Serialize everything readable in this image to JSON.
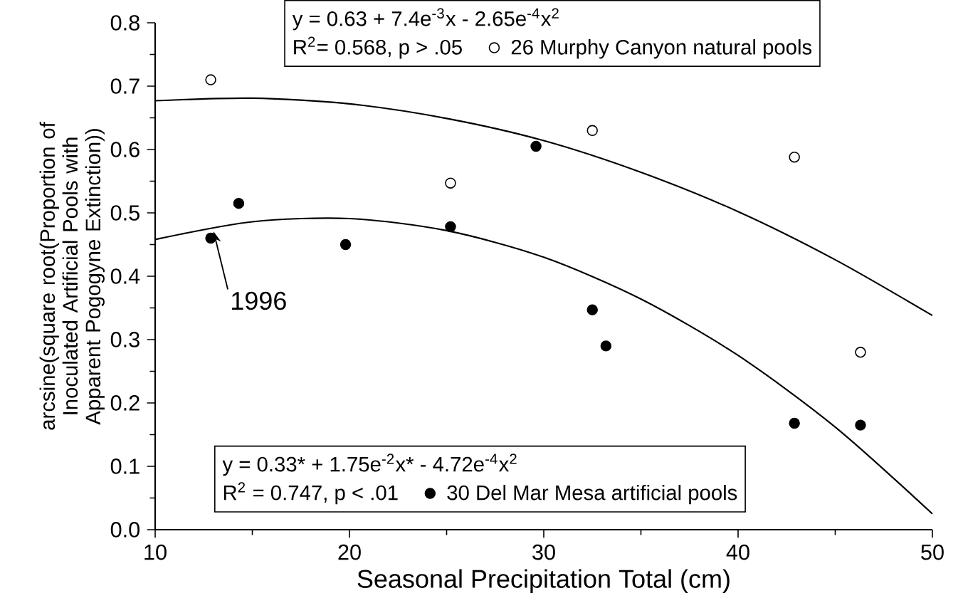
{
  "chart_data": {
    "type": "scatter",
    "xlabel": "Seasonal Precipitation Total (cm)",
    "ylabel": "arcsine(square root(Proportion of Inoculated Artificial Pools with Apparent Pogogyne Extinction))",
    "xlim": [
      10,
      50
    ],
    "ylim": [
      0,
      0.8
    ],
    "xticks": [
      10,
      20,
      30,
      40,
      50
    ],
    "yticks": [
      {
        "value": 0,
        "label": "0.0"
      },
      0.1,
      0.2,
      0.3,
      0.4,
      0.5,
      0.6,
      0.7,
      0.8
    ],
    "marker": "circle",
    "legend": "top",
    "series": [
      {
        "name": "26 Murphy Canyon natural pools",
        "color": "#ffffff",
        "x": [
          12.86,
          25.2,
          32.5,
          42.9,
          46.3
        ],
        "values": [
          0.71,
          0.547,
          0.63,
          0.588,
          0.28
        ]
      },
      {
        "name": "30 Del Mar Mesa artificial pools",
        "color": "#000000",
        "x": [
          12.86,
          14.3,
          19.8,
          25.2,
          29.6,
          32.5,
          33.2,
          42.9,
          46.3
        ],
        "values": [
          0.46,
          0.515,
          0.45,
          0.478,
          0.605,
          0.347,
          0.29,
          0.168,
          0.165
        ]
      },
      {
        "type": "line",
        "color": "#000000",
        "marker": "none",
        "x": [
          10,
          15,
          20,
          25,
          30,
          35,
          40,
          45,
          50
        ],
        "values": [
          0.677,
          0.681,
          0.672,
          0.649,
          0.614,
          0.564,
          0.502,
          0.426,
          0.338
        ]
      },
      {
        "type": "line",
        "color": "#000000",
        "marker": "none",
        "x": [
          10,
          15,
          20,
          25,
          30,
          35,
          40,
          45,
          50
        ],
        "values": [
          0.458,
          0.486,
          0.491,
          0.472,
          0.43,
          0.364,
          0.275,
          0.162,
          0.025
        ]
      }
    ],
    "annotations": [
      "y = 0.63 + 7.4e$^{-3}$x - 2.65e$^{-4}$x$^{2}$",
      "R$^{2}$= 0.568, p > .05",
      "y = 0.33* + 1.75e$^{-2}$x* - 4.72e$^{-4}$x$^{2}$",
      "R$^{2}$ = 0.747, p < .01",
      {
        "text": "1996",
        "x": 12.86,
        "y": 0.46
      }
    ]
  }
}
